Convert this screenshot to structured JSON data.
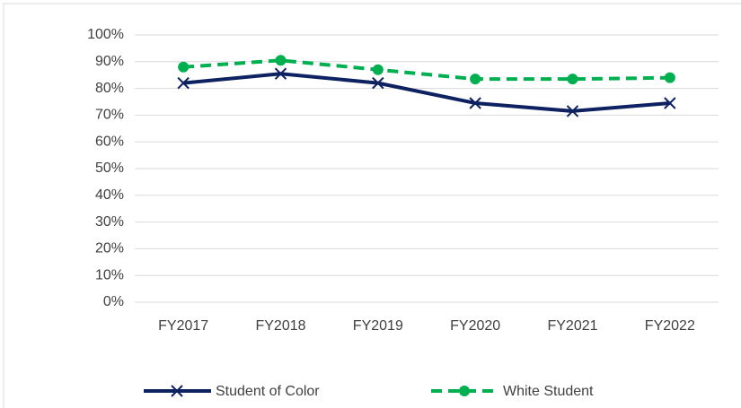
{
  "chart_data": {
    "type": "line",
    "categories": [
      "FY2017",
      "FY2018",
      "FY2019",
      "FY2020",
      "FY2021",
      "FY2022"
    ],
    "series": [
      {
        "name": "Student of Color",
        "color": "#0e2160",
        "marker": "x",
        "line_style": "solid",
        "values": [
          82,
          85.5,
          82,
          74.5,
          71.5,
          74.5
        ]
      },
      {
        "name": "White Student",
        "color": "#00b050",
        "marker": "circle",
        "line_style": "dashed",
        "values": [
          88,
          90.5,
          87,
          83.5,
          83.5,
          84
        ]
      }
    ],
    "ylim": [
      0,
      100
    ],
    "yticks": [
      {
        "value": 0,
        "label": "0%"
      },
      {
        "value": 10,
        "label": "10%"
      },
      {
        "value": 20,
        "label": "20%"
      },
      {
        "value": 30,
        "label": "30%"
      },
      {
        "value": 40,
        "label": "40%"
      },
      {
        "value": 50,
        "label": "50%"
      },
      {
        "value": 60,
        "label": "60%"
      },
      {
        "value": 70,
        "label": "70%"
      },
      {
        "value": 80,
        "label": "80%"
      },
      {
        "value": 90,
        "label": "90%"
      },
      {
        "value": 100,
        "label": "100%"
      }
    ],
    "grid": true,
    "legend": "bottom"
  }
}
